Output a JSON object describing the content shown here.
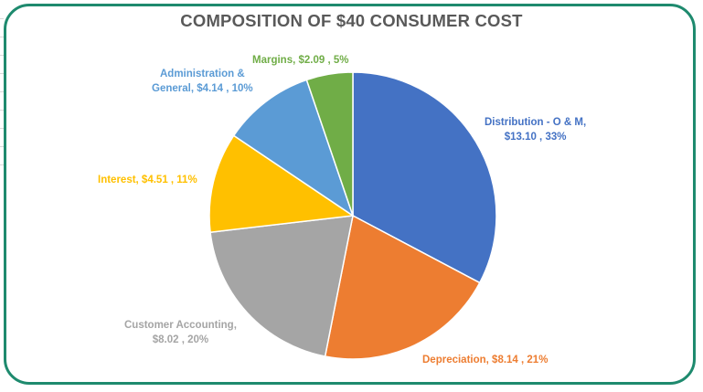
{
  "chart_data": {
    "type": "pie",
    "title": "COMPOSITION OF $40 CONSUMER COST",
    "slices": [
      {
        "name": "Distribution - O & M",
        "value": 13.1,
        "percent": 33,
        "color": "#4472c4",
        "label_lines": [
          "Distribution - O & M,",
          "$13.10 , 33%"
        ]
      },
      {
        "name": "Depreciation",
        "value": 8.14,
        "percent": 21,
        "color": "#ed7d31",
        "label_lines": [
          "Depreciation, $8.14 , 21%"
        ]
      },
      {
        "name": "Customer Accounting",
        "value": 8.02,
        "percent": 20,
        "color": "#a5a5a5",
        "label_lines": [
          "Customer Accounting,",
          "$8.02 , 20%"
        ]
      },
      {
        "name": "Interest",
        "value": 4.51,
        "percent": 11,
        "color": "#ffc000",
        "label_lines": [
          "Interest, $4.51 , 11%"
        ]
      },
      {
        "name": "Administration & General",
        "value": 4.14,
        "percent": 10,
        "color": "#5b9bd5",
        "label_lines": [
          "Administration &",
          "General, $4.14 , 10%"
        ]
      },
      {
        "name": "Margins",
        "value": 2.09,
        "percent": 5,
        "color": "#70ad47",
        "label_lines": [
          "Margins, $2.09 , 5%"
        ]
      }
    ],
    "start_angle": "12 o'clock",
    "direction": "clockwise",
    "legend": "none"
  }
}
